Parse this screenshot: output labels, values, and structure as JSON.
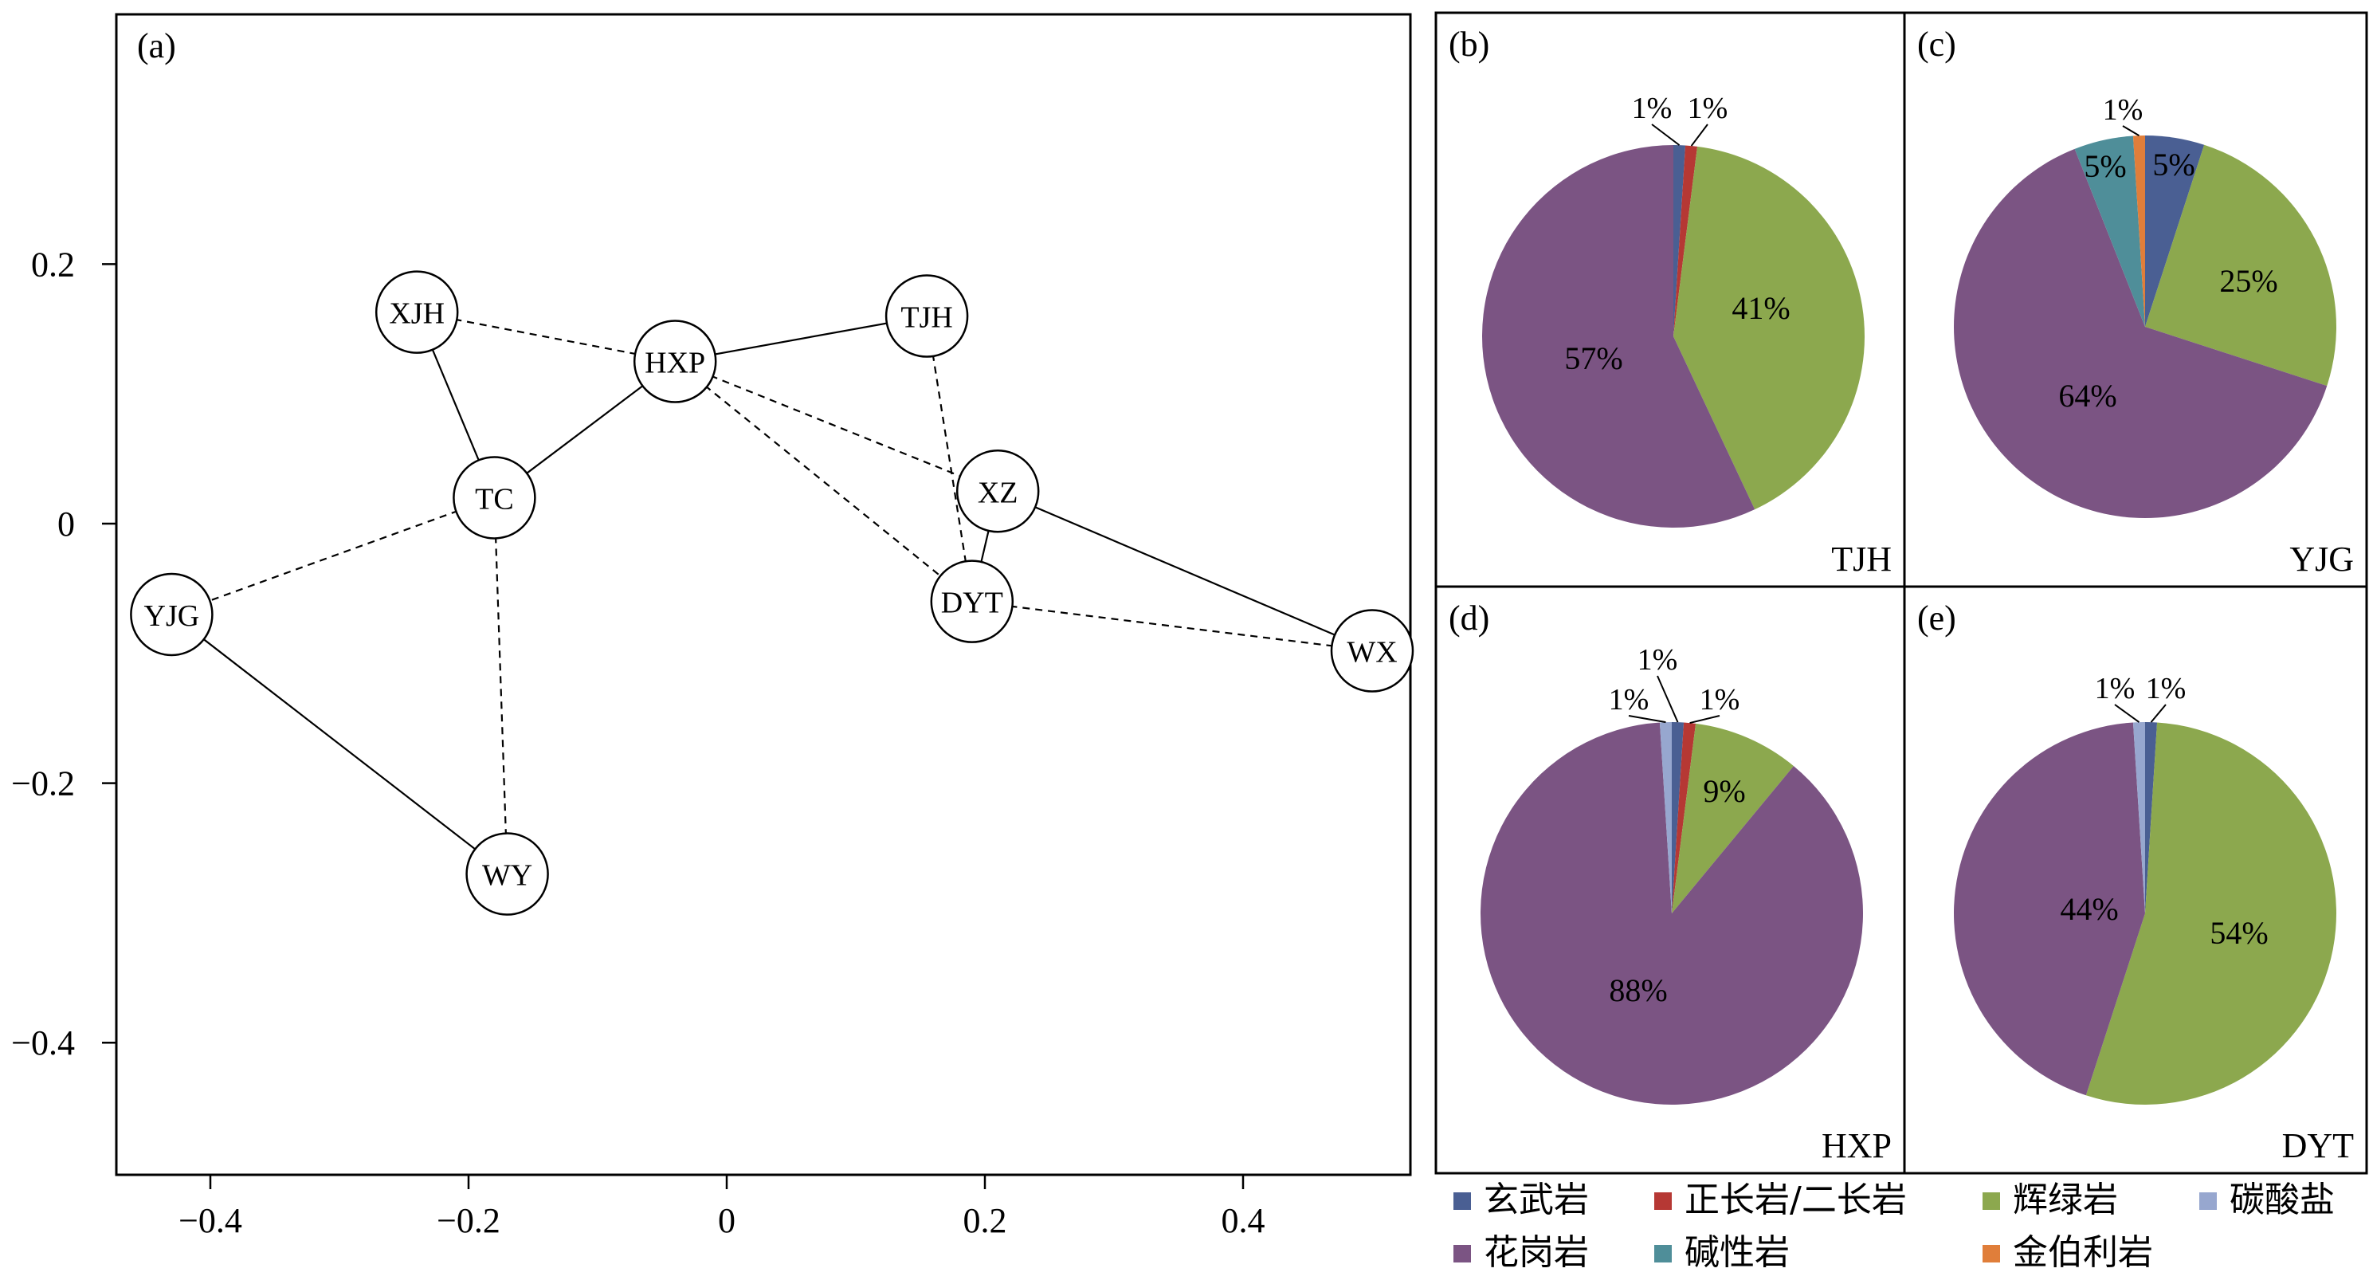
{
  "figure": {
    "panel_a": {
      "label": "(a)",
      "x_ticks": [
        "−0.4",
        "−0.2",
        "0",
        "0.2",
        "0.4"
      ],
      "y_ticks": [
        "0.2",
        "0",
        "−0.2",
        "−0.4"
      ]
    },
    "legend": [
      {
        "label": "玄武岩",
        "color": "#4a5f93"
      },
      {
        "label": "正长岩/二长岩",
        "color": "#b63834"
      },
      {
        "label": "辉绿岩",
        "color": "#8ca84e"
      },
      {
        "label": "碳酸盐",
        "color": "#97a7cf"
      },
      {
        "label": "花岗岩",
        "color": "#7b5483"
      },
      {
        "label": "碱性岩",
        "color": "#4f8e99"
      },
      {
        "label": "金伯利岩",
        "color": "#e07e3a"
      }
    ]
  },
  "chart_data": [
    {
      "type": "scatter",
      "panel": "(a)",
      "xlim": [
        -0.46,
        0.5
      ],
      "ylim": [
        -0.5,
        0.4
      ],
      "grid": false,
      "points": [
        {
          "label": "XJH",
          "x": -0.24,
          "y": 0.163
        },
        {
          "label": "HXP",
          "x": -0.04,
          "y": 0.125
        },
        {
          "label": "TJH",
          "x": 0.155,
          "y": 0.16
        },
        {
          "label": "TC",
          "x": -0.18,
          "y": 0.02
        },
        {
          "label": "XZ",
          "x": 0.21,
          "y": 0.025
        },
        {
          "label": "DYT",
          "x": 0.19,
          "y": -0.06
        },
        {
          "label": "YJG",
          "x": -0.43,
          "y": -0.07
        },
        {
          "label": "WX",
          "x": 0.5,
          "y": -0.098
        },
        {
          "label": "WY",
          "x": -0.17,
          "y": -0.27
        }
      ],
      "edges": [
        {
          "from": "XJH",
          "to": "TC",
          "style": "solid"
        },
        {
          "from": "TC",
          "to": "HXP",
          "style": "solid"
        },
        {
          "from": "HXP",
          "to": "TJH",
          "style": "solid"
        },
        {
          "from": "XZ",
          "to": "DYT",
          "style": "solid"
        },
        {
          "from": "XZ",
          "to": "WX",
          "style": "solid"
        },
        {
          "from": "YJG",
          "to": "WY",
          "style": "solid"
        },
        {
          "from": "XJH",
          "to": "HXP",
          "style": "dashed"
        },
        {
          "from": "HXP",
          "to": "XZ",
          "style": "dashed"
        },
        {
          "from": "HXP",
          "to": "DYT",
          "style": "dashed"
        },
        {
          "from": "TJH",
          "to": "DYT",
          "style": "dashed"
        },
        {
          "from": "DYT",
          "to": "WX",
          "style": "dashed"
        },
        {
          "from": "TC",
          "to": "YJG",
          "style": "dashed"
        },
        {
          "from": "TC",
          "to": "WY",
          "style": "dashed"
        }
      ]
    },
    {
      "type": "pie",
      "panel": "(b)",
      "name": "TJH",
      "slices": [
        {
          "category": "玄武岩",
          "value": 1
        },
        {
          "category": "正长岩/二长岩",
          "value": 1
        },
        {
          "category": "辉绿岩",
          "value": 41
        },
        {
          "category": "花岗岩",
          "value": 57
        }
      ]
    },
    {
      "type": "pie",
      "panel": "(c)",
      "name": "YJG",
      "slices": [
        {
          "category": "玄武岩",
          "value": 5
        },
        {
          "category": "辉绿岩",
          "value": 25
        },
        {
          "category": "花岗岩",
          "value": 64
        },
        {
          "category": "碱性岩",
          "value": 5
        },
        {
          "category": "金伯利岩",
          "value": 1
        }
      ]
    },
    {
      "type": "pie",
      "panel": "(d)",
      "name": "HXP",
      "slices": [
        {
          "category": "玄武岩",
          "value": 1
        },
        {
          "category": "正长岩/二长岩",
          "value": 1
        },
        {
          "category": "辉绿岩",
          "value": 9
        },
        {
          "category": "花岗岩",
          "value": 88
        },
        {
          "category": "碳酸盐",
          "value": 1
        }
      ]
    },
    {
      "type": "pie",
      "panel": "(e)",
      "name": "DYT",
      "slices": [
        {
          "category": "玄武岩",
          "value": 1
        },
        {
          "category": "辉绿岩",
          "value": 54
        },
        {
          "category": "花岗岩",
          "value": 44
        },
        {
          "category": "碳酸盐",
          "value": 1
        }
      ]
    }
  ]
}
